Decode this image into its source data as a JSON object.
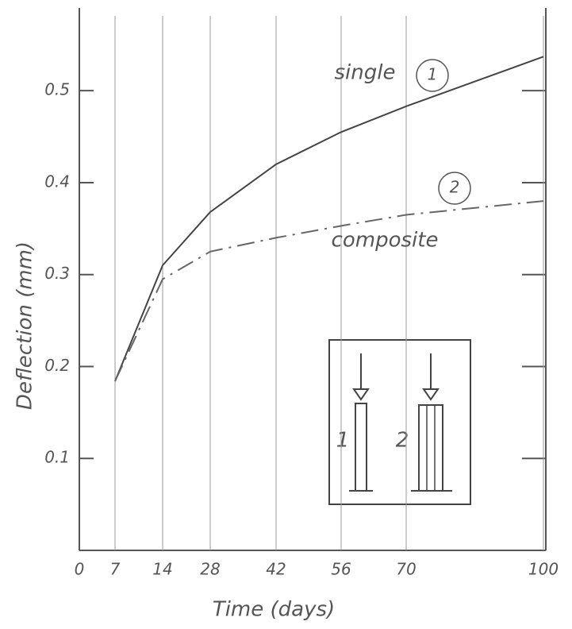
{
  "chart_data": {
    "type": "line",
    "x_label": "Time (days)",
    "y_label": "Deflection (mm)",
    "categories": [
      "0",
      "7",
      "14",
      "28",
      "42",
      "56",
      "70",
      "100"
    ],
    "series": [
      {
        "name": "single",
        "color": "#444444",
        "values": [
          null,
          0.184,
          0.31,
          0.368,
          0.42,
          0.455,
          0.483,
          0.537
        ]
      },
      {
        "name": "composite",
        "color": "#666666",
        "values": [
          null,
          0.184,
          0.295,
          0.325,
          0.34,
          0.353,
          0.365,
          0.38
        ]
      }
    ],
    "circled_labels": [
      "1",
      "2"
    ],
    "inset_labels": [
      "1",
      "2"
    ],
    "ylim": [
      0,
      0.59
    ],
    "yticks": [
      0.1,
      0.2,
      0.3,
      0.4,
      0.5
    ],
    "grid": true
  }
}
